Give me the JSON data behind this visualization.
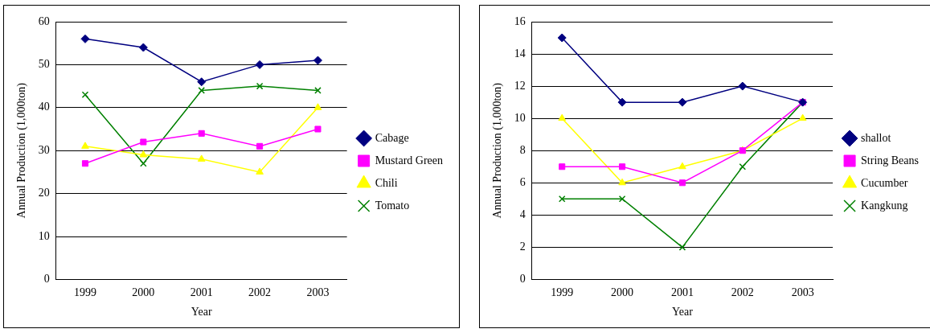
{
  "chart_data": [
    {
      "type": "line",
      "xlabel": "Year",
      "ylabel": "Annual Production (1,000ton)",
      "categories": [
        "1999",
        "2000",
        "2001",
        "2002",
        "2003"
      ],
      "ylim": [
        0,
        60
      ],
      "yticks": [
        0,
        10,
        20,
        30,
        40,
        50,
        60
      ],
      "grid": "y",
      "legend": "right",
      "series": [
        {
          "name": "Cabage",
          "color": "#000080",
          "marker": "diamond",
          "values": [
            56,
            54,
            46,
            50,
            51
          ]
        },
        {
          "name": "Mustard Green",
          "color": "#ff00ff",
          "marker": "square",
          "values": [
            27,
            32,
            34,
            31,
            35
          ]
        },
        {
          "name": "Chili",
          "color": "#ffff00",
          "marker": "triangle",
          "values": [
            31,
            29,
            28,
            25,
            40
          ]
        },
        {
          "name": "Tomato",
          "color": "#008000",
          "marker": "cross",
          "values": [
            43,
            27,
            44,
            45,
            44
          ]
        }
      ]
    },
    {
      "type": "line",
      "xlabel": "Year",
      "ylabel": "Annual Production (1,000ton)",
      "categories": [
        "1999",
        "2000",
        "2001",
        "2002",
        "2003"
      ],
      "ylim": [
        0,
        16
      ],
      "yticks": [
        0,
        2,
        4,
        6,
        8,
        10,
        12,
        14,
        16
      ],
      "grid": "y",
      "legend": "right",
      "series": [
        {
          "name": "shallot",
          "color": "#000080",
          "marker": "diamond",
          "values": [
            15,
            11,
            11,
            12,
            11
          ]
        },
        {
          "name": "String Beans",
          "color": "#ff00ff",
          "marker": "square",
          "values": [
            7,
            7,
            6,
            8,
            11
          ]
        },
        {
          "name": "Cucumber",
          "color": "#ffff00",
          "marker": "triangle",
          "values": [
            10,
            6,
            7,
            8,
            10
          ]
        },
        {
          "name": "Kangkung",
          "color": "#008000",
          "marker": "cross",
          "values": [
            5,
            5,
            2,
            7,
            11
          ]
        }
      ]
    }
  ]
}
